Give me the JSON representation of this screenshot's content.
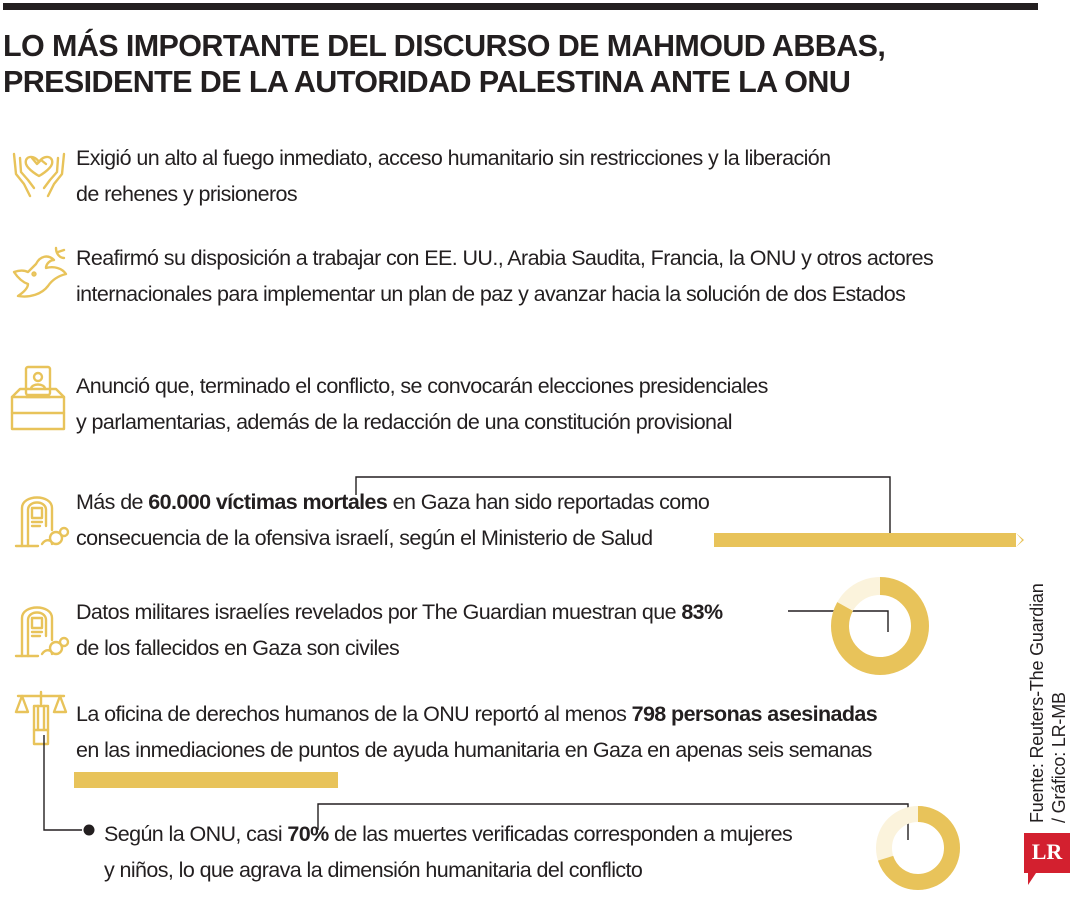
{
  "title": {
    "line1": "LO MÁS IMPORTANTE DEL DISCURSO DE MAHMOUD ABBAS,",
    "line2": "PRESIDENTE DE LA AUTORIDAD PALESTINA ANTE LA ONU"
  },
  "colors": {
    "accent": "#e8c35a",
    "accent_light": "#fbf3dc",
    "text": "#231f20",
    "logo_red": "#d3202f"
  },
  "items": [
    {
      "icon": "hands-heart-globe-icon",
      "line1": "Exigió un alto al fuego inmediato, acceso humanitario sin restricciones y la liberación",
      "line2": "de rehenes y prisioneros"
    },
    {
      "icon": "dove-icon",
      "line1": "Reafirmó su disposición a trabajar con EE. UU., Arabia Saudita, Francia, la ONU y otros actores",
      "line2": "internacionales para implementar un plan de paz y avanzar hacia la solución de dos Estados"
    },
    {
      "icon": "ballot-box-icon",
      "line1": "Anunció que, terminado el conflicto, se convocarán elecciones presidenciales",
      "line2": "y parlamentarias, además de la redacción de una constitución provisional"
    },
    {
      "icon": "gravestone-flowers-icon",
      "line1_pre": "Más de ",
      "line1_bold": "60.000 víctimas mortales",
      "line1_post": " en Gaza han sido reportadas como",
      "line2": "consecuencia de la ofensiva israelí, según el Ministerio de Salud"
    },
    {
      "icon": "gravestone-flowers-icon",
      "line1_pre": "Datos militares israelíes revelados por The Guardian muestran que ",
      "line1_bold": "83%",
      "line2": "de los fallecidos en Gaza son civiles",
      "donut_percent": 83
    },
    {
      "icon": "justice-scales-icon",
      "line1_pre": "La oficina de derechos humanos de la ONU reportó al menos ",
      "line1_bold": "798 personas asesinadas",
      "line2": "en las inmediaciones de puntos de ayuda humanitaria en Gaza en apenas seis semanas"
    },
    {
      "icon": "bullet-dot-icon",
      "line1_pre": "Según la ONU, casi ",
      "line1_bold": "70%",
      "line1_post": " de las muertes verificadas corresponden a mujeres",
      "line2": "y niños, lo que agrava la dimensión humanitaria del conflicto",
      "donut_percent": 70
    }
  ],
  "bars": {
    "victims": 60000,
    "aid_killed": 798
  },
  "source": {
    "line1": "Fuente: Reuters-The Guardian",
    "line2": "/ Gráfico: LR-MB"
  },
  "logo": "LR"
}
